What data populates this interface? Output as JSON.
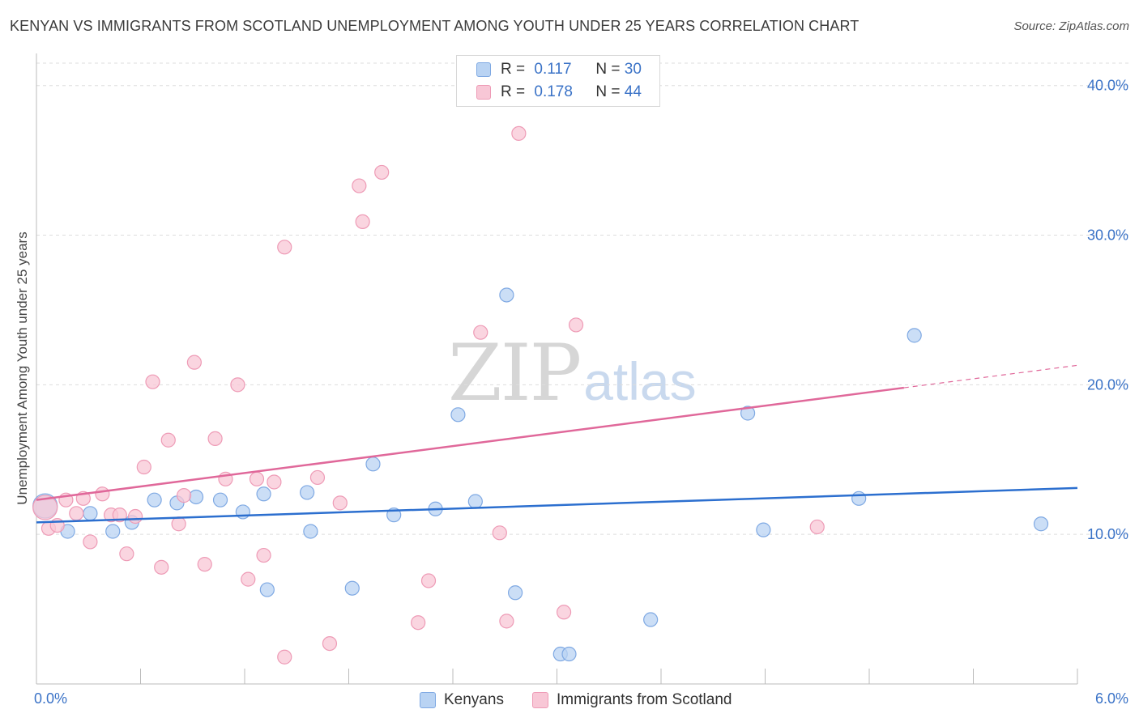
{
  "title": "KENYAN VS IMMIGRANTS FROM SCOTLAND UNEMPLOYMENT AMONG YOUTH UNDER 25 YEARS CORRELATION CHART",
  "source": "Source: ZipAtlas.com",
  "watermark": {
    "zip": "ZIP",
    "atlas": "atlas"
  },
  "legend_top": {
    "rows": [
      {
        "r_label": "R =",
        "r_value": "0.117",
        "n_label": "N =",
        "n_value": "30"
      },
      {
        "r_label": "R =",
        "r_value": "0.178",
        "n_label": "N =",
        "n_value": "44"
      }
    ]
  },
  "legend_bottom": {
    "series1": "Kenyans",
    "series2": "Immigrants from Scotland"
  },
  "colors": {
    "kenyans_fill": "#b9d3f3",
    "kenyans_stroke": "#7fa9e3",
    "kenyans_line": "#2c6fcf",
    "scotland_fill": "#f8c7d6",
    "scotland_stroke": "#ee9bb6",
    "scotland_line": "#e0689a",
    "tick_label": "#3b73c7",
    "grid": "#dddddd"
  },
  "chart_data": {
    "type": "scatter",
    "title": "KENYAN VS IMMIGRANTS FROM SCOTLAND UNEMPLOYMENT AMONG YOUTH UNDER 25 YEARS CORRELATION CHART",
    "xlabel": "",
    "ylabel": "Unemployment Among Youth under 25 years",
    "xlim": [
      0,
      6.0
    ],
    "ylim": [
      0,
      41.5
    ],
    "x_tick_labels": [
      "0.0%",
      "6.0%"
    ],
    "y_ticks": [
      10,
      20,
      30,
      40
    ],
    "y_tick_labels": [
      "10.0%",
      "20.0%",
      "30.0%",
      "40.0%"
    ],
    "grid": true,
    "legend": "top-center",
    "series": [
      {
        "name": "Kenyans",
        "r": 0.117,
        "n": 30,
        "trend": {
          "x": [
            0,
            6.0
          ],
          "y": [
            10.8,
            13.1
          ],
          "dashed_from": null
        },
        "points": [
          {
            "x": 0.05,
            "y": 11.9,
            "big": true
          },
          {
            "x": 0.18,
            "y": 10.2
          },
          {
            "x": 0.31,
            "y": 11.4
          },
          {
            "x": 0.44,
            "y": 10.2
          },
          {
            "x": 0.55,
            "y": 10.8
          },
          {
            "x": 0.68,
            "y": 12.3
          },
          {
            "x": 0.81,
            "y": 12.1
          },
          {
            "x": 0.92,
            "y": 12.5
          },
          {
            "x": 1.06,
            "y": 12.3
          },
          {
            "x": 1.19,
            "y": 11.5
          },
          {
            "x": 1.31,
            "y": 12.7
          },
          {
            "x": 1.33,
            "y": 6.3
          },
          {
            "x": 1.56,
            "y": 12.8
          },
          {
            "x": 1.58,
            "y": 10.2
          },
          {
            "x": 1.82,
            "y": 6.4
          },
          {
            "x": 1.94,
            "y": 14.7
          },
          {
            "x": 2.06,
            "y": 11.3
          },
          {
            "x": 2.3,
            "y": 11.7
          },
          {
            "x": 2.43,
            "y": 18.0
          },
          {
            "x": 2.53,
            "y": 12.2
          },
          {
            "x": 2.71,
            "y": 26.0
          },
          {
            "x": 2.76,
            "y": 6.1
          },
          {
            "x": 3.02,
            "y": 2.0
          },
          {
            "x": 3.07,
            "y": 2.0
          },
          {
            "x": 3.54,
            "y": 4.3
          },
          {
            "x": 4.1,
            "y": 18.1
          },
          {
            "x": 4.19,
            "y": 10.3
          },
          {
            "x": 4.74,
            "y": 12.4
          },
          {
            "x": 5.06,
            "y": 23.3
          },
          {
            "x": 5.79,
            "y": 10.7
          }
        ]
      },
      {
        "name": "Immigrants from Scotland",
        "r": 0.178,
        "n": 44,
        "trend": {
          "x": [
            0,
            6.0
          ],
          "y": [
            12.3,
            21.3
          ],
          "dashed_from": 5.0
        },
        "points": [
          {
            "x": 0.05,
            "y": 11.8,
            "big": true
          },
          {
            "x": 0.07,
            "y": 10.4
          },
          {
            "x": 0.12,
            "y": 10.6
          },
          {
            "x": 0.17,
            "y": 12.3
          },
          {
            "x": 0.23,
            "y": 11.4
          },
          {
            "x": 0.27,
            "y": 12.4
          },
          {
            "x": 0.31,
            "y": 9.5
          },
          {
            "x": 0.38,
            "y": 12.7
          },
          {
            "x": 0.43,
            "y": 11.3
          },
          {
            "x": 0.48,
            "y": 11.3
          },
          {
            "x": 0.52,
            "y": 8.7
          },
          {
            "x": 0.57,
            "y": 11.2
          },
          {
            "x": 0.62,
            "y": 14.5
          },
          {
            "x": 0.67,
            "y": 20.2
          },
          {
            "x": 0.72,
            "y": 7.8
          },
          {
            "x": 0.76,
            "y": 16.3
          },
          {
            "x": 0.82,
            "y": 10.7
          },
          {
            "x": 0.85,
            "y": 12.6
          },
          {
            "x": 0.91,
            "y": 21.5
          },
          {
            "x": 0.97,
            "y": 8.0
          },
          {
            "x": 1.03,
            "y": 16.4
          },
          {
            "x": 1.09,
            "y": 13.7
          },
          {
            "x": 1.16,
            "y": 20.0
          },
          {
            "x": 1.22,
            "y": 7.0
          },
          {
            "x": 1.27,
            "y": 13.7
          },
          {
            "x": 1.31,
            "y": 8.6
          },
          {
            "x": 1.37,
            "y": 13.5
          },
          {
            "x": 1.43,
            "y": 29.2
          },
          {
            "x": 1.43,
            "y": 1.8
          },
          {
            "x": 1.62,
            "y": 13.8
          },
          {
            "x": 1.69,
            "y": 2.7
          },
          {
            "x": 1.75,
            "y": 12.1
          },
          {
            "x": 1.86,
            "y": 33.3
          },
          {
            "x": 1.88,
            "y": 30.9
          },
          {
            "x": 1.99,
            "y": 34.2
          },
          {
            "x": 2.2,
            "y": 4.1
          },
          {
            "x": 2.26,
            "y": 6.9
          },
          {
            "x": 2.56,
            "y": 23.5
          },
          {
            "x": 2.67,
            "y": 10.1
          },
          {
            "x": 2.71,
            "y": 4.2
          },
          {
            "x": 2.78,
            "y": 36.8
          },
          {
            "x": 3.04,
            "y": 4.8
          },
          {
            "x": 3.11,
            "y": 24.0
          },
          {
            "x": 4.5,
            "y": 10.5
          }
        ]
      }
    ]
  }
}
